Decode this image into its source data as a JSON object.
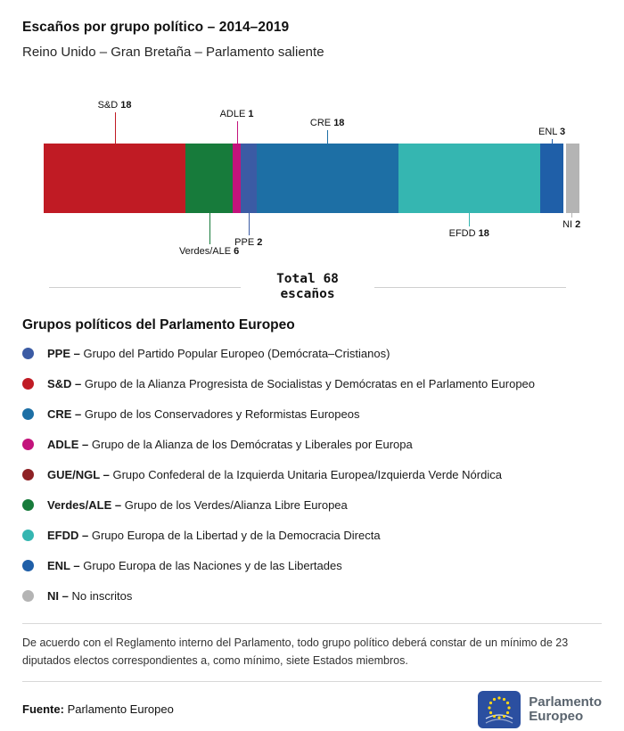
{
  "header": {
    "title": "Escaños por grupo político – 2014–2019",
    "subtitle": "Reino Unido – Gran Bretaña – Parlamento saliente"
  },
  "chart_data": {
    "type": "bar",
    "variant": "horizontal-stacked",
    "title": "Escaños por grupo político – 2014–2019",
    "region": "Reino Unido – Gran Bretaña",
    "parliament_status": "Parlamento saliente",
    "total_seats": 68,
    "total_label": {
      "line1": "Total 68",
      "line2": "escaños"
    },
    "legend_position": "below",
    "segments": [
      {
        "id": "sd",
        "group": "S&D",
        "seats": 18,
        "color": "#C01B24",
        "label_position": "above",
        "label_level": 3
      },
      {
        "id": "verdes",
        "group": "Verdes/ALE",
        "seats": 6,
        "color": "#177B3B",
        "label_position": "below",
        "label_level": 3
      },
      {
        "id": "adle",
        "group": "ADLE",
        "seats": 1,
        "color": "#C3137C",
        "label_position": "above",
        "label_level": 2
      },
      {
        "id": "ppe",
        "group": "PPE",
        "seats": 2,
        "color": "#3B5BA4",
        "label_position": "below",
        "label_level": 2
      },
      {
        "id": "cre",
        "group": "CRE",
        "seats": 18,
        "color": "#1D6FA5",
        "label_position": "above",
        "label_level": 1
      },
      {
        "id": "efdd",
        "group": "EFDD",
        "seats": 18,
        "color": "#35B6B1",
        "label_position": "below",
        "label_level": 1
      },
      {
        "id": "enl",
        "group": "ENL",
        "seats": 3,
        "color": "#1F5FA8",
        "label_position": "above",
        "label_level": 0
      },
      {
        "id": "ni",
        "group": "NI",
        "seats": 2,
        "color": "#B4B4B4",
        "label_position": "below",
        "label_level": 0,
        "separator_before": true
      }
    ]
  },
  "legend": {
    "heading": "Grupos políticos del Parlamento Europeo",
    "items": [
      {
        "id": "ppe",
        "abbr_label": "PPE –",
        "name": "Grupo del Partido Popular Europeo (Demócrata–Cristianos)",
        "color": "#3B5BA4"
      },
      {
        "id": "sd",
        "abbr_label": "S&D –",
        "name": "Grupo de la Alianza Progresista de Socialistas y Demócratas en el Parlamento Europeo",
        "color": "#C01B24"
      },
      {
        "id": "cre",
        "abbr_label": "CRE –",
        "name": "Grupo de los Conservadores y Reformistas Europeos",
        "color": "#1D6FA5"
      },
      {
        "id": "adle",
        "abbr_label": "ADLE –",
        "name": "Grupo de la Alianza de los Demócratas y Liberales por Europa",
        "color": "#C3137C"
      },
      {
        "id": "gue-ngl",
        "abbr_label": "GUE/NGL –",
        "name": "Grupo Confederal de la Izquierda Unitaria Europea/Izquierda Verde Nórdica",
        "color": "#8E2125"
      },
      {
        "id": "verdes-ale",
        "abbr_label": "Verdes/ALE –",
        "name": "Grupo de los Verdes/Alianza Libre Europea",
        "color": "#177B3B"
      },
      {
        "id": "efdd",
        "abbr_label": "EFDD –",
        "name": "Grupo Europa de la Libertad y de la Democracia Directa",
        "color": "#35B6B1"
      },
      {
        "id": "enl",
        "abbr_label": "ENL –",
        "name": "Grupo Europa de las Naciones y de las Libertades",
        "color": "#1F5FA8"
      },
      {
        "id": "ni",
        "abbr_label": "NI –",
        "name": "No inscritos",
        "color": "#B4B4B4"
      }
    ]
  },
  "footnote": "De acuerdo con el Reglamento interno del Parlamento, todo grupo político deberá constar de un mínimo de 23 diputados electos correspondientes a, como mínimo, siete Estados miembros.",
  "footer": {
    "source_label": "Fuente:",
    "source_value": "Parlamento Europeo",
    "logo": {
      "line1": "Parlamento",
      "line2": "Europeo",
      "flag_color": "#2B4FA0",
      "star_color": "#FFD617"
    }
  }
}
